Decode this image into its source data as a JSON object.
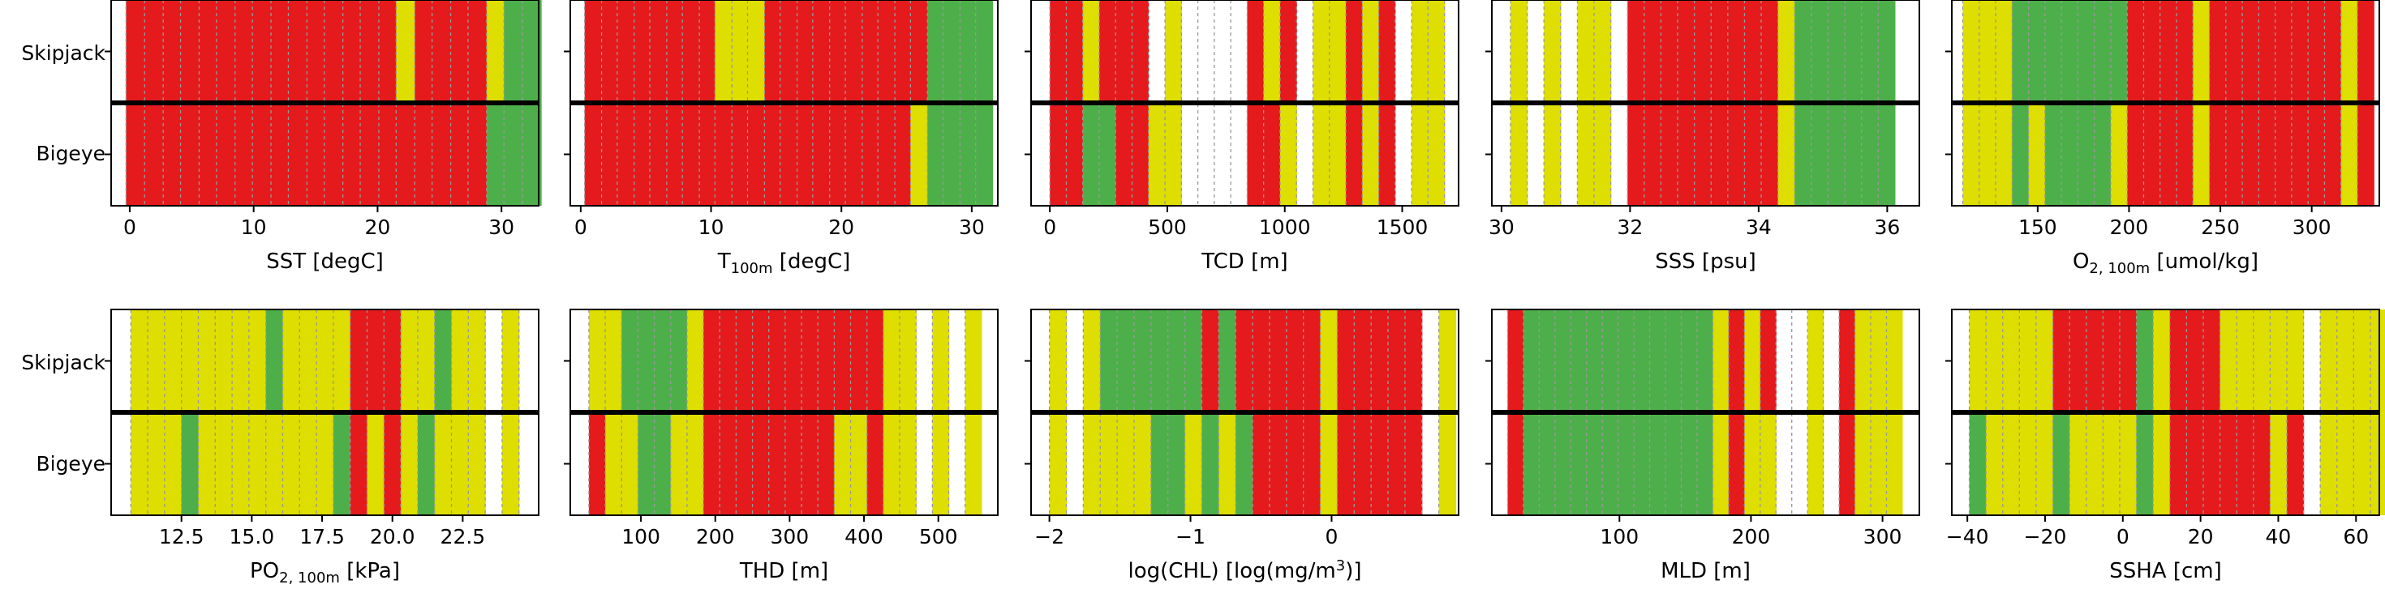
{
  "colors": {
    "red": "#e41a1c",
    "yellow": "#dede00",
    "green": "#4daf4a",
    "frame": "#000000",
    "grid": "#999999"
  },
  "species": [
    "Skipjack",
    "Bigeye"
  ],
  "chart_data": [
    {
      "type": "band",
      "xlabel": "SST [degC]",
      "xlim": [
        -1.5,
        33
      ],
      "ticks": [
        0,
        10,
        20,
        30
      ],
      "tick_labels": [
        "0",
        "10",
        "20",
        "30"
      ],
      "bins": [
        -0.3,
        1.2,
        2.7,
        4.1,
        5.6,
        7.0,
        8.5,
        9.9,
        11.4,
        12.8,
        14.3,
        15.7,
        17.2,
        18.6,
        20.1,
        21.5,
        23.0,
        24.4,
        25.9,
        27.3,
        28.8,
        30.2,
        31.7
      ],
      "skipjack": [
        "R",
        "R",
        "R",
        "R",
        "R",
        "R",
        "R",
        "R",
        "R",
        "R",
        "R",
        "R",
        "R",
        "R",
        "R",
        "Y",
        "R",
        "R",
        "R",
        "R",
        "Y",
        "G",
        "G"
      ],
      "bigeye": [
        "R",
        "R",
        "R",
        "R",
        "R",
        "R",
        "R",
        "R",
        "R",
        "R",
        "R",
        "R",
        "R",
        "R",
        "R",
        "R",
        "R",
        "R",
        "R",
        "R",
        "G",
        "G",
        "G"
      ]
    },
    {
      "type": "band",
      "xlabel": "T",
      "xlabel_sub": "100m",
      "xlabel_rest": " [degC]",
      "xlim": [
        -0.8,
        32
      ],
      "ticks": [
        0,
        10,
        20,
        30
      ],
      "tick_labels": [
        "0",
        "10",
        "20",
        "30"
      ],
      "bins": [
        0.3,
        1.6,
        2.8,
        4.1,
        5.3,
        6.6,
        7.8,
        9.1,
        10.3,
        11.6,
        12.8,
        14.1,
        15.3,
        16.6,
        17.8,
        19.1,
        20.3,
        21.6,
        22.8,
        24.1,
        25.3,
        26.6,
        27.8,
        29.1,
        30.3
      ],
      "skipjack": [
        "R",
        "R",
        "R",
        "R",
        "R",
        "R",
        "R",
        "R",
        "Y",
        "Y",
        "Y",
        "R",
        "R",
        "R",
        "R",
        "R",
        "R",
        "R",
        "R",
        "R",
        "R",
        "G",
        "G",
        "G",
        "G"
      ],
      "bigeye": [
        "R",
        "R",
        "R",
        "R",
        "R",
        "R",
        "R",
        "R",
        "R",
        "R",
        "R",
        "R",
        "R",
        "R",
        "R",
        "R",
        "R",
        "R",
        "R",
        "R",
        "Y",
        "G",
        "G",
        "G",
        "G"
      ]
    },
    {
      "type": "band",
      "xlabel": "TCD [m]",
      "xlim": [
        -80,
        1740
      ],
      "ticks": [
        0,
        500,
        1000,
        1500
      ],
      "tick_labels": [
        "0",
        "500",
        "1000",
        "1500"
      ],
      "bins": [
        0,
        70,
        140,
        210,
        280,
        350,
        420,
        490,
        560,
        630,
        700,
        770,
        840,
        910,
        980,
        1050,
        1120,
        1190,
        1260,
        1330,
        1400,
        1470,
        1540,
        1610,
        1680
      ],
      "skipjack": [
        "R",
        "R",
        "Y",
        "R",
        "R",
        "R",
        "-",
        "Y",
        "-",
        "-",
        "-",
        "-",
        "R",
        "Y",
        "R",
        "-",
        "Y",
        "Y",
        "R",
        "Y",
        "R",
        "-",
        "Y",
        "Y",
        "-"
      ],
      "bigeye": [
        "R",
        "R",
        "G",
        "G",
        "R",
        "R",
        "Y",
        "Y",
        "-",
        "-",
        "-",
        "-",
        "R",
        "R",
        "Y",
        "-",
        "Y",
        "Y",
        "R",
        "Y",
        "R",
        "-",
        "Y",
        "Y",
        "-"
      ]
    },
    {
      "type": "band",
      "xlabel": "SSS [psu]",
      "xlim": [
        29.85,
        36.5
      ],
      "ticks": [
        30,
        32,
        34,
        36
      ],
      "tick_labels": [
        "30",
        "32",
        "34",
        "36"
      ],
      "bins": [
        30.14,
        30.4,
        30.66,
        30.92,
        31.18,
        31.44,
        31.7,
        31.96,
        32.22,
        32.48,
        32.74,
        33.0,
        33.26,
        33.52,
        33.78,
        34.04,
        34.3,
        34.56,
        34.82,
        35.08,
        35.34,
        35.6,
        35.86
      ],
      "skipjack": [
        "Y",
        "-",
        "Y",
        "-",
        "Y",
        "Y",
        "-",
        "R",
        "R",
        "R",
        "R",
        "R",
        "R",
        "R",
        "R",
        "R",
        "Y",
        "G",
        "G",
        "G",
        "G",
        "G",
        "G"
      ],
      "bigeye": [
        "Y",
        "-",
        "Y",
        "-",
        "Y",
        "Y",
        "-",
        "R",
        "R",
        "R",
        "R",
        "R",
        "R",
        "R",
        "R",
        "R",
        "Y",
        "G",
        "G",
        "G",
        "G",
        "G",
        "G"
      ]
    },
    {
      "type": "band",
      "xlabel": "O",
      "xlabel_sub": "2, 100m",
      "xlabel_rest": " [umol/kg]",
      "xlim": [
        103,
        337
      ],
      "ticks": [
        150,
        200,
        250,
        300
      ],
      "tick_labels": [
        "150",
        "200",
        "250",
        "300"
      ],
      "bins": [
        109,
        118,
        127,
        136,
        145,
        154,
        163,
        172,
        181,
        190,
        199,
        208,
        217,
        226,
        235,
        244,
        253,
        262,
        271,
        280,
        289,
        298,
        307,
        316,
        325
      ],
      "skipjack": [
        "Y",
        "Y",
        "Y",
        "G",
        "G",
        "G",
        "G",
        "G",
        "G",
        "G",
        "R",
        "R",
        "R",
        "R",
        "Y",
        "R",
        "R",
        "R",
        "R",
        "R",
        "R",
        "R",
        "R",
        "Y",
        "R"
      ],
      "bigeye": [
        "Y",
        "Y",
        "Y",
        "G",
        "Y",
        "G",
        "G",
        "G",
        "G",
        "Y",
        "R",
        "R",
        "R",
        "R",
        "Y",
        "R",
        "R",
        "R",
        "R",
        "R",
        "R",
        "R",
        "R",
        "Y",
        "R"
      ]
    },
    {
      "type": "band",
      "xlabel": "PO",
      "xlabel_sub": "2, 100m",
      "xlabel_rest": " [kPa]",
      "xlim": [
        10,
        25.2
      ],
      "ticks": [
        12.5,
        15,
        17.5,
        20,
        22.5
      ],
      "tick_labels": [
        "12.5",
        "15.0",
        "17.5",
        "20.0",
        "22.5"
      ],
      "bins": [
        10.7,
        11.3,
        11.9,
        12.5,
        13.1,
        13.7,
        14.3,
        14.9,
        15.5,
        16.1,
        16.7,
        17.3,
        17.9,
        18.5,
        19.1,
        19.7,
        20.3,
        20.9,
        21.5,
        22.1,
        22.7,
        23.3,
        23.9,
        24.5
      ],
      "skipjack": [
        "Y",
        "Y",
        "Y",
        "Y",
        "Y",
        "Y",
        "Y",
        "Y",
        "G",
        "Y",
        "Y",
        "Y",
        "Y",
        "R",
        "R",
        "R",
        "Y",
        "Y",
        "G",
        "Y",
        "Y",
        "-",
        "Y",
        "-"
      ],
      "bigeye": [
        "Y",
        "Y",
        "Y",
        "G",
        "Y",
        "Y",
        "Y",
        "Y",
        "Y",
        "Y",
        "Y",
        "Y",
        "G",
        "R",
        "Y",
        "R",
        "Y",
        "G",
        "Y",
        "Y",
        "Y",
        "-",
        "Y",
        "-"
      ]
    },
    {
      "type": "band",
      "xlabel": "THD [m]",
      "xlim": [
        5,
        580
      ],
      "ticks": [
        100,
        200,
        300,
        400,
        500
      ],
      "tick_labels": [
        "100",
        "200",
        "300",
        "400",
        "500"
      ],
      "bins": [
        30,
        52,
        74,
        96,
        118,
        140,
        162,
        184,
        206,
        228,
        250,
        272,
        294,
        316,
        338,
        360,
        382,
        404,
        426,
        448,
        470,
        492,
        514,
        536
      ],
      "skipjack": [
        "Y",
        "Y",
        "G",
        "G",
        "G",
        "G",
        "Y",
        "R",
        "R",
        "R",
        "R",
        "R",
        "R",
        "R",
        "R",
        "R",
        "R",
        "R",
        "Y",
        "Y",
        "-",
        "Y",
        "-",
        "Y"
      ],
      "bigeye": [
        "R",
        "Y",
        "Y",
        "G",
        "G",
        "Y",
        "Y",
        "R",
        "R",
        "R",
        "R",
        "R",
        "R",
        "R",
        "R",
        "Y",
        "Y",
        "R",
        "Y",
        "Y",
        "-",
        "Y",
        "-",
        "Y"
      ]
    },
    {
      "type": "band",
      "xlabel": "log(CHL) [log(mg/m",
      "xlabel_sup": "3",
      "xlabel_rest": ")]",
      "xlim": [
        -2.13,
        0.9
      ],
      "ticks": [
        -2,
        -1,
        0
      ],
      "tick_labels": [
        "−2",
        "−1",
        "0"
      ],
      "bins": [
        -2.0,
        -1.88,
        -1.76,
        -1.64,
        -1.52,
        -1.4,
        -1.28,
        -1.16,
        -1.04,
        -0.92,
        -0.8,
        -0.68,
        -0.56,
        -0.44,
        -0.32,
        -0.2,
        -0.08,
        0.04,
        0.16,
        0.28,
        0.4,
        0.52,
        0.64,
        0.76
      ],
      "skipjack": [
        "Y",
        "-",
        "Y",
        "G",
        "G",
        "G",
        "G",
        "G",
        "G",
        "R",
        "G",
        "R",
        "R",
        "R",
        "R",
        "R",
        "Y",
        "R",
        "R",
        "R",
        "R",
        "R",
        "-",
        "Y"
      ],
      "bigeye": [
        "Y",
        "-",
        "Y",
        "Y",
        "Y",
        "Y",
        "G",
        "G",
        "Y",
        "G",
        "Y",
        "G",
        "R",
        "R",
        "R",
        "R",
        "Y",
        "R",
        "R",
        "R",
        "R",
        "R",
        "-",
        "Y"
      ]
    },
    {
      "type": "band",
      "xlabel": "MLD [m]",
      "xlim": [
        3,
        328
      ],
      "ticks": [
        100,
        200,
        300
      ],
      "tick_labels": [
        "100",
        "200",
        "300"
      ],
      "bins": [
        15,
        27,
        39,
        51,
        63,
        75,
        87,
        99,
        111,
        123,
        135,
        147,
        159,
        171,
        183,
        195,
        207,
        219,
        231,
        243,
        255,
        267,
        279,
        291,
        303
      ],
      "skipjack": [
        "R",
        "G",
        "G",
        "G",
        "G",
        "G",
        "G",
        "G",
        "G",
        "G",
        "G",
        "G",
        "G",
        "Y",
        "R",
        "Y",
        "R",
        "-",
        "-",
        "Y",
        "-",
        "R",
        "Y",
        "Y",
        "Y"
      ],
      "bigeye": [
        "R",
        "G",
        "G",
        "G",
        "G",
        "G",
        "G",
        "G",
        "G",
        "G",
        "G",
        "G",
        "G",
        "Y",
        "R",
        "Y",
        "Y",
        "-",
        "-",
        "Y",
        "-",
        "R",
        "Y",
        "Y",
        "Y"
      ]
    },
    {
      "type": "band",
      "xlabel": "SSHA [cm]",
      "xlim": [
        -44,
        66
      ],
      "ticks": [
        -40,
        -20,
        0,
        20,
        40,
        60
      ],
      "tick_labels": [
        "−40",
        "−20",
        "0",
        "20",
        "40",
        "60"
      ],
      "bins": [
        -39.5,
        -35.2,
        -30.9,
        -26.6,
        -22.3,
        -18.0,
        -13.7,
        -9.4,
        -5.1,
        -0.8,
        3.5,
        7.8,
        12.1,
        16.4,
        20.7,
        25.0,
        29.3,
        33.6,
        37.9,
        42.2,
        46.5,
        50.8,
        55.1,
        59.4,
        63.7
      ],
      "skipjack": [
        "Y",
        "Y",
        "Y",
        "Y",
        "Y",
        "R",
        "R",
        "R",
        "R",
        "R",
        "G",
        "Y",
        "R",
        "R",
        "R",
        "Y",
        "Y",
        "Y",
        "Y",
        "Y",
        "-",
        "Y",
        "Y",
        "Y",
        "Y"
      ],
      "bigeye": [
        "G",
        "Y",
        "Y",
        "Y",
        "Y",
        "G",
        "Y",
        "Y",
        "Y",
        "Y",
        "G",
        "Y",
        "R",
        "R",
        "R",
        "R",
        "R",
        "R",
        "Y",
        "R",
        "-",
        "Y",
        "Y",
        "Y",
        "Y"
      ]
    }
  ]
}
